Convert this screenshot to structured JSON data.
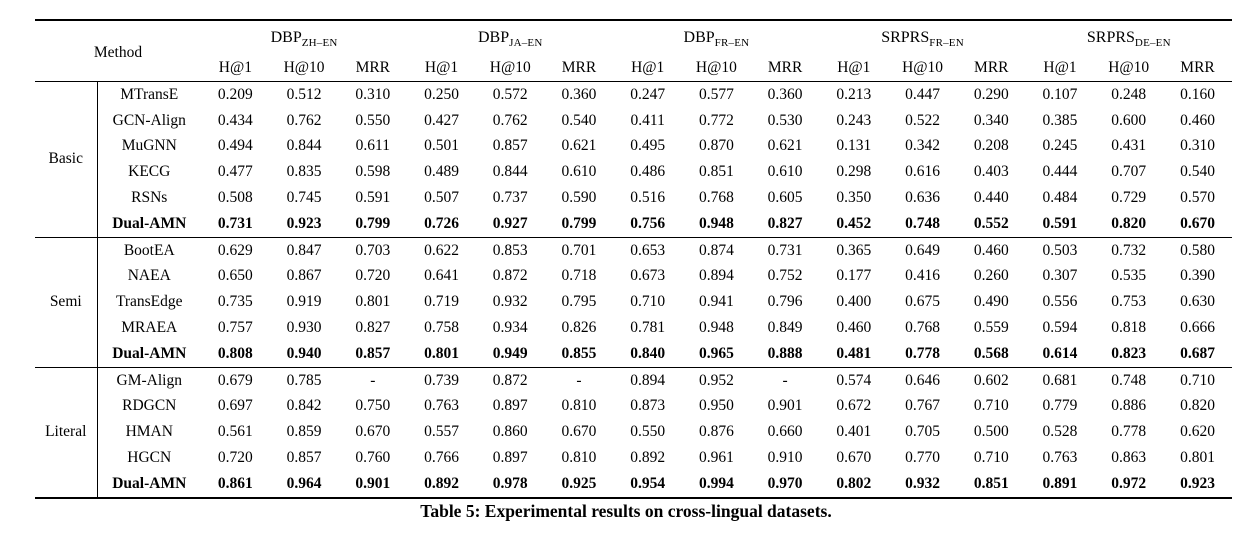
{
  "table": {
    "caption": "Table 5: Experimental results on cross-lingual datasets.",
    "method_header": "Method",
    "metric_headers": [
      "H@1",
      "H@10",
      "MRR"
    ],
    "datasets": [
      {
        "base": "DBP",
        "sub": "ZH–EN"
      },
      {
        "base": "DBP",
        "sub": "JA–EN"
      },
      {
        "base": "DBP",
        "sub": "FR–EN"
      },
      {
        "base": "SRPRS",
        "sub": "FR–EN"
      },
      {
        "base": "SRPRS",
        "sub": "DE–EN"
      }
    ],
    "groups": [
      {
        "label": "Basic",
        "rows": [
          {
            "method": "MTransE",
            "bold": false,
            "values": [
              "0.209",
              "0.512",
              "0.310",
              "0.250",
              "0.572",
              "0.360",
              "0.247",
              "0.577",
              "0.360",
              "0.213",
              "0.447",
              "0.290",
              "0.107",
              "0.248",
              "0.160"
            ]
          },
          {
            "method": "GCN-Align",
            "bold": false,
            "values": [
              "0.434",
              "0.762",
              "0.550",
              "0.427",
              "0.762",
              "0.540",
              "0.411",
              "0.772",
              "0.530",
              "0.243",
              "0.522",
              "0.340",
              "0.385",
              "0.600",
              "0.460"
            ]
          },
          {
            "method": "MuGNN",
            "bold": false,
            "values": [
              "0.494",
              "0.844",
              "0.611",
              "0.501",
              "0.857",
              "0.621",
              "0.495",
              "0.870",
              "0.621",
              "0.131",
              "0.342",
              "0.208",
              "0.245",
              "0.431",
              "0.310"
            ]
          },
          {
            "method": "KECG",
            "bold": false,
            "values": [
              "0.477",
              "0.835",
              "0.598",
              "0.489",
              "0.844",
              "0.610",
              "0.486",
              "0.851",
              "0.610",
              "0.298",
              "0.616",
              "0.403",
              "0.444",
              "0.707",
              "0.540"
            ]
          },
          {
            "method": "RSNs",
            "bold": false,
            "values": [
              "0.508",
              "0.745",
              "0.591",
              "0.507",
              "0.737",
              "0.590",
              "0.516",
              "0.768",
              "0.605",
              "0.350",
              "0.636",
              "0.440",
              "0.484",
              "0.729",
              "0.570"
            ]
          },
          {
            "method": "Dual-AMN",
            "bold": true,
            "values": [
              "0.731",
              "0.923",
              "0.799",
              "0.726",
              "0.927",
              "0.799",
              "0.756",
              "0.948",
              "0.827",
              "0.452",
              "0.748",
              "0.552",
              "0.591",
              "0.820",
              "0.670"
            ]
          }
        ]
      },
      {
        "label": "Semi",
        "rows": [
          {
            "method": "BootEA",
            "bold": false,
            "values": [
              "0.629",
              "0.847",
              "0.703",
              "0.622",
              "0.853",
              "0.701",
              "0.653",
              "0.874",
              "0.731",
              "0.365",
              "0.649",
              "0.460",
              "0.503",
              "0.732",
              "0.580"
            ]
          },
          {
            "method": "NAEA",
            "bold": false,
            "values": [
              "0.650",
              "0.867",
              "0.720",
              "0.641",
              "0.872",
              "0.718",
              "0.673",
              "0.894",
              "0.752",
              "0.177",
              "0.416",
              "0.260",
              "0.307",
              "0.535",
              "0.390"
            ]
          },
          {
            "method": "TransEdge",
            "bold": false,
            "values": [
              "0.735",
              "0.919",
              "0.801",
              "0.719",
              "0.932",
              "0.795",
              "0.710",
              "0.941",
              "0.796",
              "0.400",
              "0.675",
              "0.490",
              "0.556",
              "0.753",
              "0.630"
            ]
          },
          {
            "method": "MRAEA",
            "bold": false,
            "values": [
              "0.757",
              "0.930",
              "0.827",
              "0.758",
              "0.934",
              "0.826",
              "0.781",
              "0.948",
              "0.849",
              "0.460",
              "0.768",
              "0.559",
              "0.594",
              "0.818",
              "0.666"
            ]
          },
          {
            "method": "Dual-AMN",
            "bold": true,
            "values": [
              "0.808",
              "0.940",
              "0.857",
              "0.801",
              "0.949",
              "0.855",
              "0.840",
              "0.965",
              "0.888",
              "0.481",
              "0.778",
              "0.568",
              "0.614",
              "0.823",
              "0.687"
            ]
          }
        ]
      },
      {
        "label": "Literal",
        "rows": [
          {
            "method": "GM-Align",
            "bold": false,
            "values": [
              "0.679",
              "0.785",
              "-",
              "0.739",
              "0.872",
              "-",
              "0.894",
              "0.952",
              "-",
              "0.574",
              "0.646",
              "0.602",
              "0.681",
              "0.748",
              "0.710"
            ]
          },
          {
            "method": "RDGCN",
            "bold": false,
            "values": [
              "0.697",
              "0.842",
              "0.750",
              "0.763",
              "0.897",
              "0.810",
              "0.873",
              "0.950",
              "0.901",
              "0.672",
              "0.767",
              "0.710",
              "0.779",
              "0.886",
              "0.820"
            ]
          },
          {
            "method": "HMAN",
            "bold": false,
            "values": [
              "0.561",
              "0.859",
              "0.670",
              "0.557",
              "0.860",
              "0.670",
              "0.550",
              "0.876",
              "0.660",
              "0.401",
              "0.705",
              "0.500",
              "0.528",
              "0.778",
              "0.620"
            ]
          },
          {
            "method": "HGCN",
            "bold": false,
            "values": [
              "0.720",
              "0.857",
              "0.760",
              "0.766",
              "0.897",
              "0.810",
              "0.892",
              "0.961",
              "0.910",
              "0.670",
              "0.770",
              "0.710",
              "0.763",
              "0.863",
              "0.801"
            ]
          },
          {
            "method": "Dual-AMN",
            "bold": true,
            "values": [
              "0.861",
              "0.964",
              "0.901",
              "0.892",
              "0.978",
              "0.925",
              "0.954",
              "0.994",
              "0.970",
              "0.802",
              "0.932",
              "0.851",
              "0.891",
              "0.972",
              "0.923"
            ]
          }
        ]
      }
    ]
  }
}
